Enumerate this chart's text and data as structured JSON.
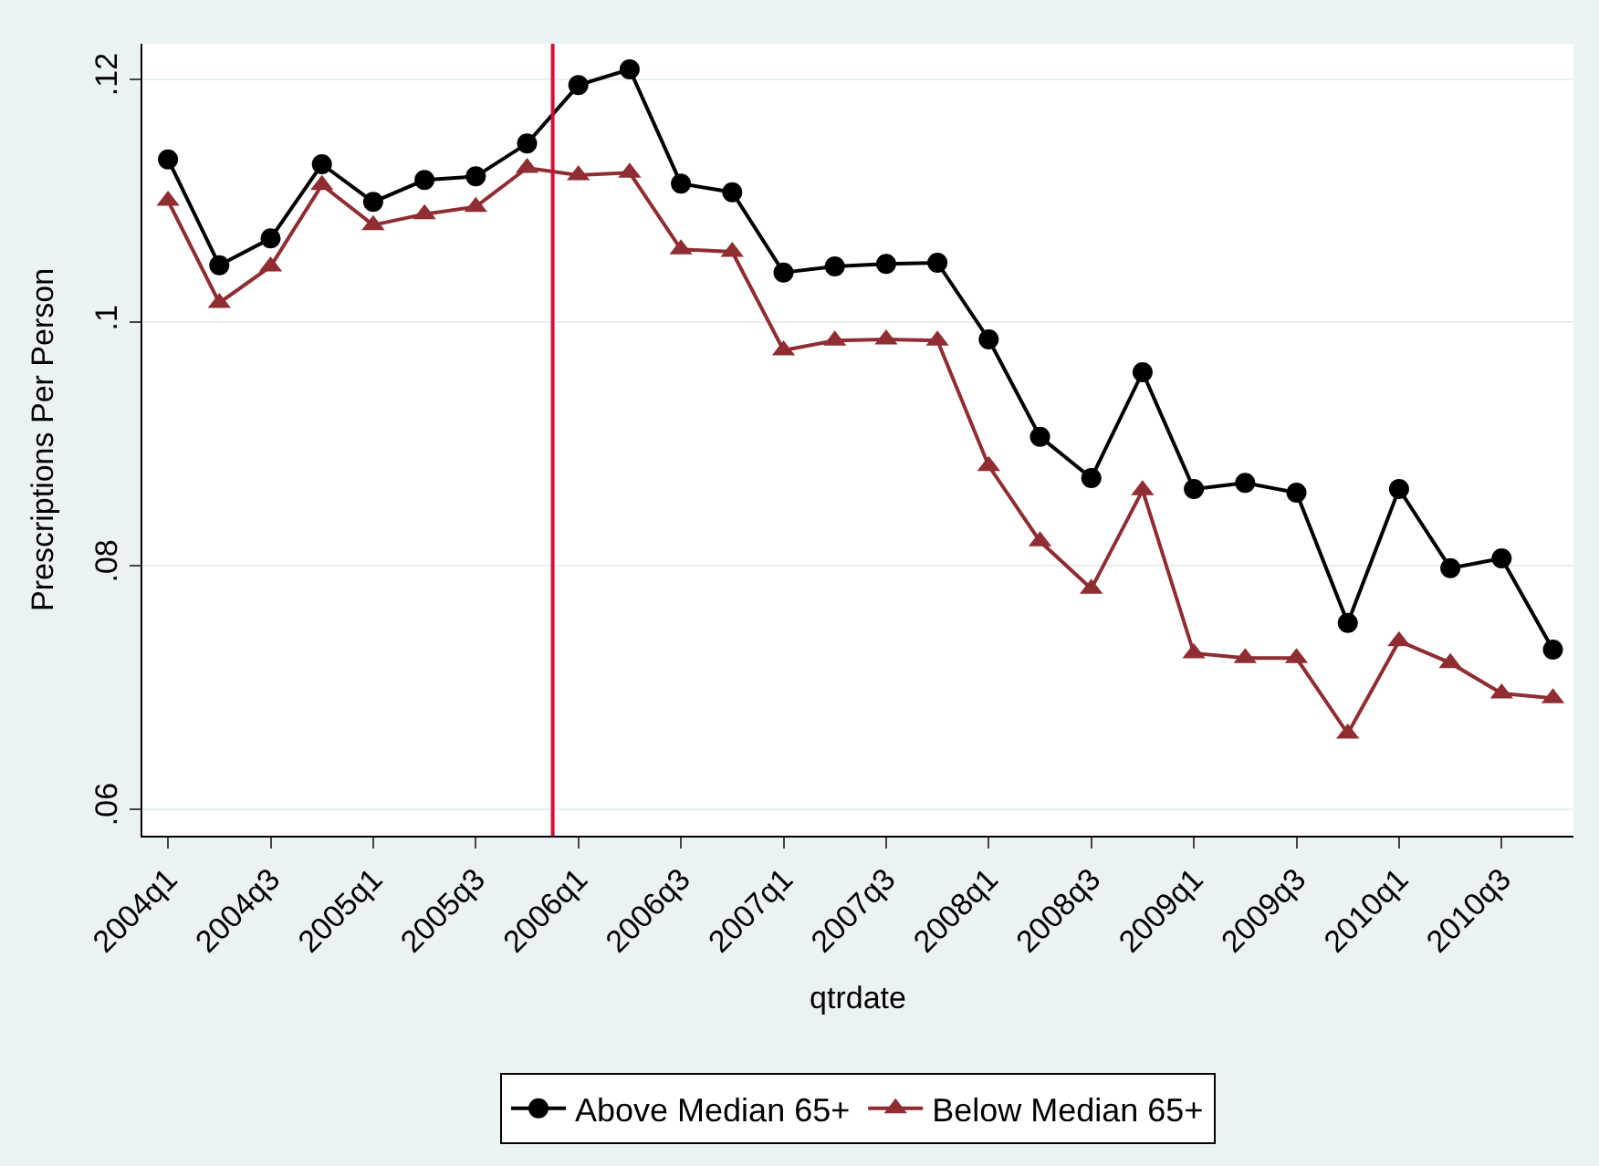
{
  "chart_data": {
    "type": "line",
    "xlabel": "qtrdate",
    "ylabel": "Prescriptions Per Person",
    "categories": [
      "2004q1",
      null,
      "2004q3",
      null,
      "2005q1",
      null,
      "2005q3",
      null,
      "2006q1",
      null,
      "2006q3",
      null,
      "2007q1",
      null,
      "2007q3",
      null,
      "2008q1",
      null,
      "2008q3",
      null,
      "2009q1",
      null,
      "2009q3",
      null,
      "2010q1",
      null,
      "2010q3",
      null
    ],
    "series": [
      {
        "name": "Above Median 65+",
        "color": "#000000",
        "marker": "circle",
        "values": [
          0.1134,
          0.1047,
          0.1069,
          0.113,
          0.1099,
          0.1117,
          0.112,
          0.1147,
          0.1195,
          0.1208,
          0.1114,
          0.1107,
          0.1041,
          0.1046,
          0.1048,
          0.1049,
          0.0986,
          0.0906,
          0.0872,
          0.0959,
          0.0863,
          0.0868,
          0.086,
          0.0753,
          0.0863,
          0.0798,
          0.0806,
          0.0731
        ]
      },
      {
        "name": "Below Median 65+",
        "color": "#8f2d33",
        "marker": "triangle",
        "values": [
          0.11,
          0.1016,
          0.1046,
          0.1113,
          0.108,
          0.1089,
          0.1095,
          0.1127,
          0.1121,
          0.1123,
          0.106,
          0.1058,
          0.0977,
          0.0985,
          0.0986,
          0.0985,
          0.0882,
          0.082,
          0.0781,
          0.0862,
          0.0728,
          0.0724,
          0.0724,
          0.0662,
          0.0738,
          0.072,
          0.0695,
          0.0691
        ]
      }
    ],
    "ylim": [
      0.0578,
      0.1229
    ],
    "yticks": [
      {
        "value": 0.06,
        "label": ".06"
      },
      {
        "value": 0.08,
        "label": ".08"
      },
      {
        "value": 0.1,
        "label": ".1"
      },
      {
        "value": 0.12,
        "label": ".12"
      }
    ],
    "grid": "y",
    "legend": "bottom",
    "line_style": "solid"
  }
}
